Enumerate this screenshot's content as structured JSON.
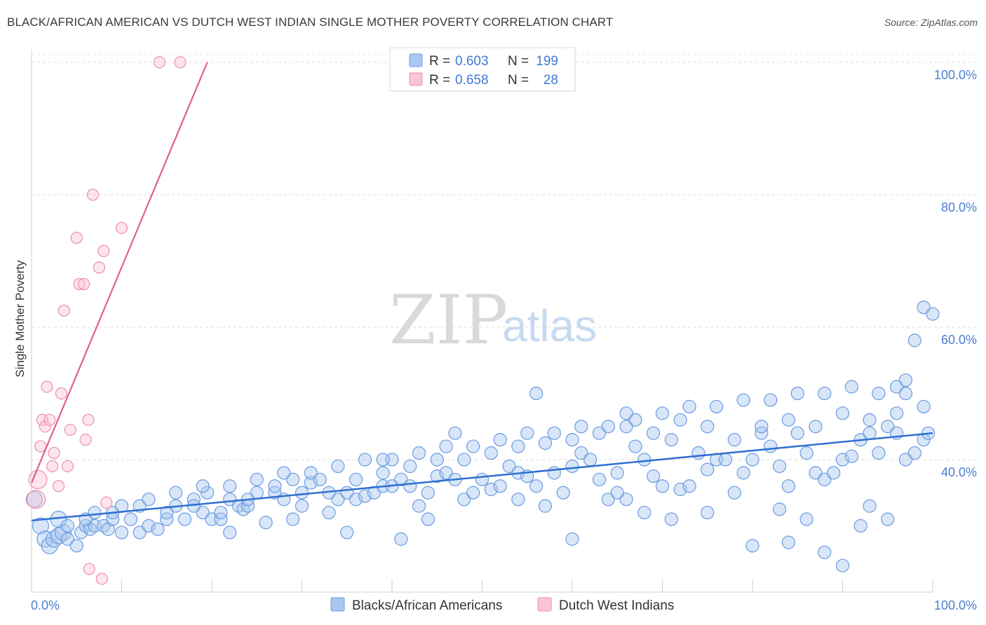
{
  "title": "BLACK/AFRICAN AMERICAN VS DUTCH WEST INDIAN SINGLE MOTHER POVERTY CORRELATION CHART",
  "source": "Source: ZipAtlas.com",
  "watermark": {
    "zip": "ZIP",
    "atlas": "atlas"
  },
  "legend_top": [
    {
      "r_label": "R =",
      "r_value": "0.603",
      "n_label": "N =",
      "n_value": "199",
      "color": "#a9c8f0",
      "border": "#6a9be0"
    },
    {
      "r_label": "R =",
      "r_value": "0.658",
      "n_label": "N =",
      "n_value": "28",
      "color": "#f9c6d5",
      "border": "#ee8fab"
    }
  ],
  "legend_bottom": [
    {
      "label": "Blacks/African Americans",
      "color": "#a9c8f0",
      "border": "#6a9be0"
    },
    {
      "label": "Dutch West Indians",
      "color": "#f9c6d5",
      "border": "#ee8fab"
    }
  ],
  "chart_data": {
    "type": "scatter",
    "title": "BLACK/AFRICAN AMERICAN VS DUTCH WEST INDIAN SINGLE MOTHER POVERTY CORRELATION CHART",
    "xlabel": "",
    "ylabel": "Single Mother Poverty",
    "xlim": [
      0,
      100
    ],
    "ylim": [
      20,
      102
    ],
    "x_tick_labels": [
      "0.0%",
      "100.0%"
    ],
    "y_ticks": [
      40,
      60,
      80,
      100
    ],
    "y_tick_labels": [
      "40.0%",
      "60.0%",
      "80.0%",
      "100.0%"
    ],
    "grid": "horizontal dashed",
    "legend_placement": "top-center and bottom",
    "colors": {
      "blue": "#6a9be0",
      "blue_fill": "#a9c8f0",
      "blue_line": "#2f6fd0",
      "pink": "#ee8fab",
      "pink_fill": "#f9c6d5",
      "pink_line": "#e0608a"
    },
    "series": [
      {
        "name": "Blacks/African Americans",
        "r": 0.603,
        "n": 199,
        "trend": {
          "x": [
            0,
            100
          ],
          "y": [
            30.8,
            44.0
          ]
        },
        "points": [
          [
            0.3,
            34
          ],
          [
            1,
            30
          ],
          [
            1.5,
            28
          ],
          [
            2,
            27
          ],
          [
            2.5,
            28
          ],
          [
            3,
            28.5
          ],
          [
            3.5,
            29
          ],
          [
            4,
            28
          ],
          [
            5,
            27
          ],
          [
            5.5,
            29
          ],
          [
            6,
            30
          ],
          [
            6.5,
            29.5
          ],
          [
            7,
            30
          ],
          [
            8,
            30
          ],
          [
            8.5,
            29.5
          ],
          [
            9,
            31
          ],
          [
            10,
            29
          ],
          [
            11,
            31
          ],
          [
            12,
            29
          ],
          [
            13,
            30
          ],
          [
            14,
            29.5
          ],
          [
            15,
            31
          ],
          [
            16,
            33
          ],
          [
            17,
            31
          ],
          [
            18,
            34
          ],
          [
            19,
            32
          ],
          [
            19.5,
            35
          ],
          [
            20,
            31
          ],
          [
            21,
            31
          ],
          [
            22,
            34
          ],
          [
            23,
            33
          ],
          [
            23.5,
            32.5
          ],
          [
            24,
            33
          ],
          [
            25,
            35
          ],
          [
            26,
            30.5
          ],
          [
            27,
            35
          ],
          [
            28,
            34
          ],
          [
            29,
            37
          ],
          [
            30,
            33
          ],
          [
            31,
            36.5
          ],
          [
            32,
            37
          ],
          [
            33,
            32
          ],
          [
            34,
            34
          ],
          [
            35,
            35
          ],
          [
            36,
            34
          ],
          [
            37,
            34.5
          ],
          [
            38,
            35
          ],
          [
            39,
            36
          ],
          [
            40,
            36
          ],
          [
            41,
            37
          ],
          [
            42,
            36
          ],
          [
            43,
            33
          ],
          [
            44,
            35
          ],
          [
            45,
            37.5
          ],
          [
            46,
            38
          ],
          [
            47,
            37
          ],
          [
            48,
            34
          ],
          [
            49,
            35
          ],
          [
            50,
            37
          ],
          [
            51,
            35.5
          ],
          [
            52,
            36
          ],
          [
            53,
            39
          ],
          [
            54,
            38
          ],
          [
            55,
            37.5
          ],
          [
            56,
            36
          ],
          [
            57,
            33
          ],
          [
            58,
            38
          ],
          [
            59,
            35
          ],
          [
            60,
            39
          ],
          [
            61,
            41
          ],
          [
            62,
            40
          ],
          [
            63,
            37
          ],
          [
            64,
            34
          ],
          [
            65,
            38
          ],
          [
            66,
            34
          ],
          [
            67,
            42
          ],
          [
            68,
            40
          ],
          [
            69,
            37.5
          ],
          [
            70,
            36
          ],
          [
            71,
            43
          ],
          [
            72,
            35.5
          ],
          [
            73,
            36
          ],
          [
            74,
            41
          ],
          [
            75,
            38.5
          ],
          [
            76,
            40
          ],
          [
            77,
            40
          ],
          [
            78,
            35
          ],
          [
            79,
            38
          ],
          [
            80,
            40
          ],
          [
            81,
            44
          ],
          [
            82,
            42
          ],
          [
            83,
            39
          ],
          [
            84,
            36
          ],
          [
            85,
            44
          ],
          [
            86,
            41
          ],
          [
            87,
            38
          ],
          [
            88,
            37
          ],
          [
            89,
            38
          ],
          [
            90,
            40
          ],
          [
            91,
            40.5
          ],
          [
            92,
            43
          ],
          [
            93,
            44
          ],
          [
            94,
            41
          ],
          [
            95,
            45
          ],
          [
            96,
            44
          ],
          [
            97,
            40
          ],
          [
            98,
            41
          ],
          [
            99,
            43
          ],
          [
            99.5,
            44
          ],
          [
            3,
            31
          ],
          [
            4,
            30
          ],
          [
            6,
            31
          ],
          [
            9,
            32
          ],
          [
            12,
            33
          ],
          [
            15,
            32
          ],
          [
            18,
            33
          ],
          [
            21,
            32
          ],
          [
            24,
            34
          ],
          [
            27,
            36
          ],
          [
            30,
            35
          ],
          [
            33,
            35
          ],
          [
            36,
            37
          ],
          [
            39,
            38
          ],
          [
            42,
            39
          ],
          [
            45,
            40
          ],
          [
            48,
            40
          ],
          [
            51,
            41
          ],
          [
            54,
            42
          ],
          [
            57,
            42.5
          ],
          [
            60,
            43
          ],
          [
            63,
            44
          ],
          [
            66,
            45
          ],
          [
            69,
            44
          ],
          [
            72,
            46
          ],
          [
            75,
            45
          ],
          [
            78,
            43
          ],
          [
            81,
            45
          ],
          [
            84,
            46
          ],
          [
            87,
            45
          ],
          [
            90,
            47
          ],
          [
            93,
            46
          ],
          [
            96,
            47
          ],
          [
            99,
            48
          ],
          [
            7,
            32
          ],
          [
            10,
            33
          ],
          [
            13,
            34
          ],
          [
            16,
            35
          ],
          [
            19,
            36
          ],
          [
            22,
            36
          ],
          [
            25,
            37
          ],
          [
            28,
            38
          ],
          [
            31,
            38
          ],
          [
            34,
            39
          ],
          [
            37,
            40
          ],
          [
            40,
            40
          ],
          [
            43,
            41
          ],
          [
            46,
            42
          ],
          [
            49,
            42
          ],
          [
            52,
            43
          ],
          [
            55,
            44
          ],
          [
            58,
            44
          ],
          [
            61,
            45
          ],
          [
            64,
            45
          ],
          [
            67,
            46
          ],
          [
            70,
            47
          ],
          [
            73,
            48
          ],
          [
            76,
            48
          ],
          [
            79,
            49
          ],
          [
            82,
            49
          ],
          [
            85,
            50
          ],
          [
            88,
            50
          ],
          [
            91,
            51
          ],
          [
            94,
            50
          ],
          [
            97,
            52
          ],
          [
            47,
            44
          ],
          [
            56,
            50
          ],
          [
            65,
            35
          ],
          [
            71,
            31
          ],
          [
            75,
            32
          ],
          [
            80,
            27
          ],
          [
            84,
            27.5
          ],
          [
            88,
            26
          ],
          [
            90,
            24
          ],
          [
            92,
            30
          ],
          [
            95,
            31
          ],
          [
            98,
            58
          ],
          [
            99,
            63
          ],
          [
            100,
            62
          ],
          [
            96,
            51
          ],
          [
            97,
            50
          ],
          [
            44,
            31
          ],
          [
            29,
            31
          ],
          [
            39,
            40
          ],
          [
            41,
            28
          ],
          [
            60,
            28
          ],
          [
            68,
            32
          ],
          [
            83,
            32.5
          ],
          [
            86,
            31
          ],
          [
            93,
            33
          ],
          [
            54,
            34
          ],
          [
            35,
            29
          ],
          [
            22,
            29
          ],
          [
            66,
            47
          ]
        ]
      },
      {
        "name": "Dutch West Indians",
        "r": 0.658,
        "n": 28,
        "trend": {
          "x": [
            0,
            19.5
          ],
          "y": [
            36.5,
            100
          ]
        },
        "points": [
          [
            0.5,
            34
          ],
          [
            0.7,
            37
          ],
          [
            1,
            42
          ],
          [
            1.2,
            46
          ],
          [
            1.5,
            45
          ],
          [
            1.7,
            51
          ],
          [
            2,
            46
          ],
          [
            2.3,
            39
          ],
          [
            2.5,
            41
          ],
          [
            3,
            36
          ],
          [
            3.3,
            50
          ],
          [
            3.6,
            62.5
          ],
          [
            4,
            39
          ],
          [
            4.3,
            44.5
          ],
          [
            5,
            73.5
          ],
          [
            5.3,
            66.5
          ],
          [
            5.8,
            66.5
          ],
          [
            6,
            43
          ],
          [
            6.3,
            46
          ],
          [
            6.8,
            80
          ],
          [
            7.5,
            69
          ],
          [
            7.8,
            22
          ],
          [
            8,
            71.5
          ],
          [
            8.3,
            33.5
          ],
          [
            10,
            75
          ],
          [
            14.2,
            100
          ],
          [
            16.5,
            100
          ],
          [
            6.4,
            23.5
          ]
        ]
      }
    ]
  }
}
